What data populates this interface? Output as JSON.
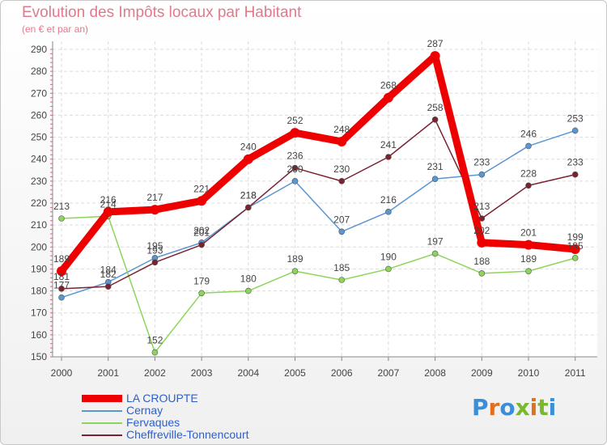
{
  "title": "Evolution des Impôts locaux par Habitant",
  "subtitle": "(en € et par an)",
  "logo_text": "Proxiti",
  "chart_data": {
    "type": "line",
    "title": "Evolution des Impôts locaux par Habitant",
    "subtitle": "(en € et par an)",
    "xlabel": "",
    "ylabel": "",
    "x": [
      "2000",
      "2001",
      "2002",
      "2003",
      "2004",
      "2005",
      "2006",
      "2007",
      "2008",
      "2009",
      "2010",
      "2011"
    ],
    "ylim": [
      150,
      290
    ],
    "yticks": [
      150,
      160,
      170,
      180,
      190,
      200,
      210,
      220,
      230,
      240,
      250,
      260,
      270,
      280,
      290
    ],
    "grid": true,
    "legend_position": "bottom-left",
    "series": [
      {
        "name": "LA CROUPTE",
        "color": "#ee0000",
        "values": [
          189,
          216,
          217,
          221,
          240,
          252,
          248,
          268,
          287,
          202,
          201,
          199
        ]
      },
      {
        "name": "Cernay",
        "color": "#5a96d2",
        "values": [
          177,
          184,
          195,
          202,
          218,
          230,
          207,
          216,
          231,
          233,
          246,
          253
        ]
      },
      {
        "name": "Fervaques",
        "color": "#8dd55a",
        "values": [
          213,
          214,
          152,
          179,
          180,
          189,
          185,
          190,
          197,
          188,
          189,
          195
        ]
      },
      {
        "name": "Cheffreville-Tonnencourt",
        "color": "#7a2230",
        "values": [
          181,
          182,
          193,
          201,
          218,
          236,
          230,
          241,
          258,
          213,
          228,
          233
        ]
      }
    ]
  }
}
